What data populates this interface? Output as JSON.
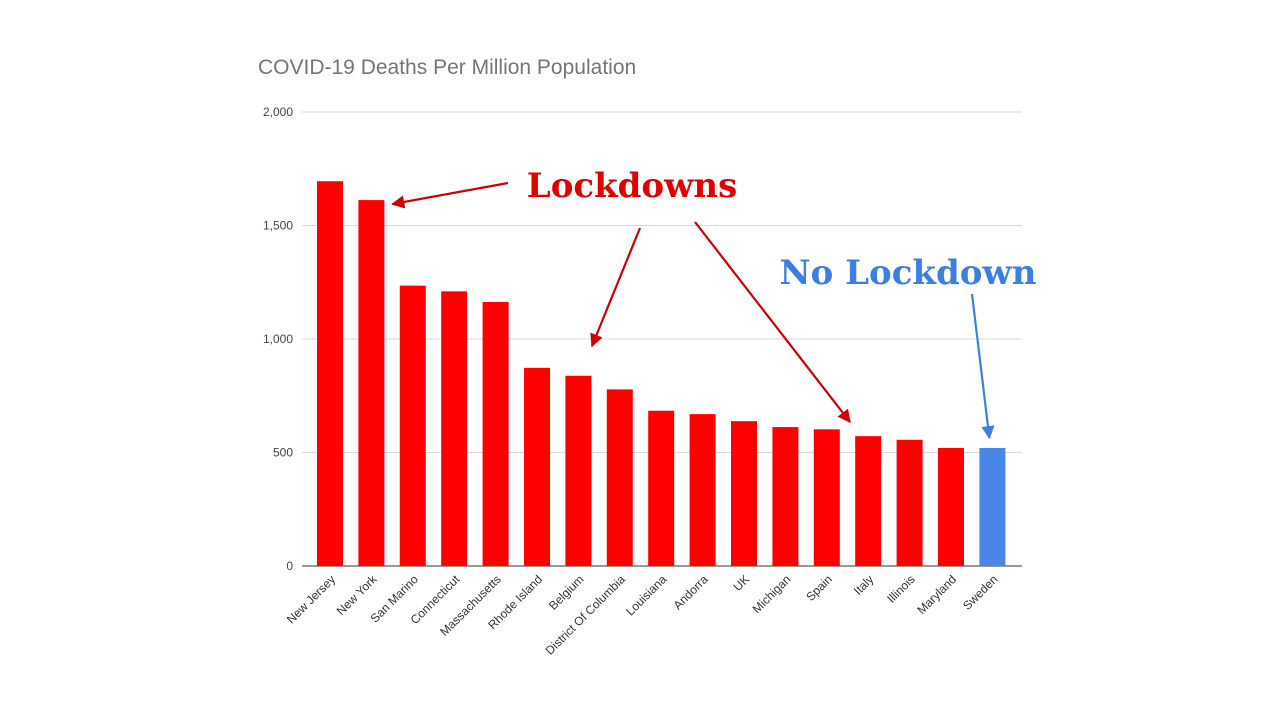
{
  "chart_data": {
    "type": "bar",
    "title": "COVID-19 Deaths Per Million Population",
    "xlabel": "",
    "ylabel": "",
    "ylim": [
      0,
      2000
    ],
    "yticks": [
      0,
      500,
      1000,
      1500,
      2000
    ],
    "ytick_labels": [
      "0",
      "500",
      "1,000",
      "1,500",
      "2,000"
    ],
    "grid": true,
    "legend": "none",
    "categories": [
      "New Jersey",
      "New York",
      "San Marino",
      "Connecticut",
      "Massachusetts",
      "Rhode Island",
      "Belgium",
      "District Of Columbia",
      "Louisiana",
      "Andorra",
      "UK",
      "Michigan",
      "Spain",
      "Italy",
      "Illinois",
      "Maryland",
      "Sweden"
    ],
    "values": [
      1695,
      1612,
      1235,
      1210,
      1163,
      873,
      838,
      778,
      684,
      669,
      638,
      612,
      602,
      572,
      556,
      520,
      520
    ],
    "bar_colors": [
      "#ff0000",
      "#ff0000",
      "#ff0000",
      "#ff0000",
      "#ff0000",
      "#ff0000",
      "#ff0000",
      "#ff0000",
      "#ff0000",
      "#ff0000",
      "#ff0000",
      "#ff0000",
      "#ff0000",
      "#ff0000",
      "#ff0000",
      "#ff0000",
      "#4a86e8"
    ],
    "annotations": [
      {
        "text": "Lockdowns",
        "color": "#e00000",
        "arrow_targets": [
          "New York",
          "Belgium",
          "Italy"
        ]
      },
      {
        "text": "No Lockdown",
        "color": "#3d7fe0",
        "arrow_targets": [
          "Sweden"
        ]
      }
    ]
  }
}
